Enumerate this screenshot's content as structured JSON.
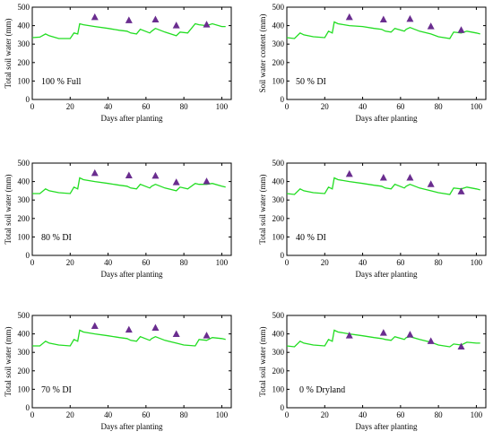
{
  "colors": {
    "simulated": "#22dd22",
    "measured": "#6a2d8f",
    "axis": "#000000"
  },
  "chart_data": [
    {
      "type": "line",
      "label": "100 % Full",
      "xlabel": "Days after planting",
      "ylabel": "Total soil water (mm)",
      "xlim": [
        0,
        105
      ],
      "ylim": [
        0,
        500
      ],
      "xticks": [
        0,
        20,
        40,
        60,
        80,
        100
      ],
      "yticks": [
        0,
        100,
        200,
        300,
        400,
        500
      ],
      "grid": false,
      "series": [
        {
          "style": "line",
          "x": [
            0,
            4,
            7,
            9,
            14,
            20,
            22,
            24,
            25,
            27,
            33,
            40,
            46,
            50,
            52,
            55,
            57,
            62,
            63,
            65,
            70,
            76,
            78,
            82,
            86,
            88,
            92,
            95,
            100,
            102
          ],
          "y": [
            335,
            338,
            355,
            345,
            330,
            330,
            360,
            355,
            410,
            405,
            395,
            385,
            375,
            370,
            360,
            355,
            380,
            360,
            370,
            385,
            365,
            345,
            365,
            360,
            410,
            405,
            400,
            410,
            395,
            395
          ]
        },
        {
          "style": "triangle",
          "x": [
            33,
            51,
            65,
            76,
            92
          ],
          "y": [
            445,
            428,
            432,
            400,
            405
          ]
        }
      ]
    },
    {
      "type": "line",
      "label": "50 % DI",
      "xlabel": "Days after planting",
      "ylabel": "Soil water content (mm)",
      "xlim": [
        0,
        105
      ],
      "ylim": [
        0,
        500
      ],
      "xticks": [
        0,
        20,
        40,
        60,
        80,
        100
      ],
      "yticks": [
        0,
        100,
        200,
        300,
        400,
        500
      ],
      "grid": false,
      "series": [
        {
          "style": "line",
          "x": [
            0,
            4,
            7,
            9,
            14,
            20,
            22,
            24,
            25,
            27,
            33,
            40,
            46,
            50,
            52,
            55,
            57,
            62,
            63,
            65,
            70,
            76,
            80,
            86,
            88,
            92,
            95,
            100,
            102
          ],
          "y": [
            335,
            330,
            360,
            350,
            340,
            335,
            370,
            360,
            420,
            410,
            400,
            395,
            385,
            380,
            370,
            365,
            385,
            370,
            380,
            390,
            370,
            355,
            340,
            330,
            365,
            360,
            370,
            360,
            355
          ]
        },
        {
          "style": "triangle",
          "x": [
            33,
            51,
            65,
            76,
            92
          ],
          "y": [
            445,
            432,
            435,
            395,
            375
          ]
        }
      ]
    },
    {
      "type": "line",
      "label": "80 % DI",
      "xlabel": "Days after planting",
      "ylabel": "Total soil water (mm)",
      "xlim": [
        0,
        105
      ],
      "ylim": [
        0,
        500
      ],
      "xticks": [
        0,
        20,
        40,
        60,
        80,
        100
      ],
      "yticks": [
        0,
        100,
        200,
        300,
        400,
        500
      ],
      "grid": false,
      "series": [
        {
          "style": "line",
          "x": [
            0,
            4,
            7,
            9,
            14,
            20,
            22,
            24,
            25,
            27,
            33,
            40,
            46,
            50,
            52,
            55,
            57,
            62,
            63,
            65,
            70,
            76,
            78,
            82,
            86,
            88,
            92,
            95,
            100,
            102
          ],
          "y": [
            335,
            335,
            360,
            350,
            340,
            335,
            370,
            360,
            420,
            410,
            400,
            390,
            380,
            375,
            365,
            360,
            385,
            365,
            375,
            385,
            365,
            350,
            370,
            360,
            390,
            385,
            385,
            390,
            375,
            370
          ]
        },
        {
          "style": "triangle",
          "x": [
            33,
            51,
            65,
            76,
            92
          ],
          "y": [
            445,
            432,
            430,
            395,
            400
          ]
        }
      ]
    },
    {
      "type": "line",
      "label": "40 % DI",
      "xlabel": "Days after planting",
      "ylabel": "Total soil water (mm)",
      "xlim": [
        0,
        105
      ],
      "ylim": [
        0,
        500
      ],
      "xticks": [
        0,
        20,
        40,
        60,
        80,
        100
      ],
      "yticks": [
        0,
        100,
        200,
        300,
        400,
        500
      ],
      "grid": false,
      "series": [
        {
          "style": "line",
          "x": [
            0,
            4,
            7,
            9,
            14,
            20,
            22,
            24,
            25,
            27,
            33,
            40,
            46,
            50,
            52,
            55,
            57,
            62,
            63,
            65,
            70,
            76,
            80,
            86,
            88,
            92,
            95,
            100,
            102
          ],
          "y": [
            335,
            330,
            360,
            350,
            340,
            335,
            370,
            360,
            420,
            410,
            400,
            390,
            380,
            375,
            365,
            360,
            385,
            365,
            375,
            385,
            365,
            350,
            340,
            330,
            365,
            360,
            370,
            360,
            355
          ]
        },
        {
          "style": "triangle",
          "x": [
            33,
            51,
            65,
            76,
            92
          ],
          "y": [
            440,
            420,
            420,
            385,
            345
          ]
        }
      ]
    },
    {
      "type": "line",
      "label": "70 % DI",
      "xlabel": "Days after planting",
      "ylabel": "Total soil water (mm)",
      "xlim": [
        0,
        105
      ],
      "ylim": [
        0,
        500
      ],
      "xticks": [
        0,
        20,
        40,
        60,
        80,
        100
      ],
      "yticks": [
        0,
        100,
        200,
        300,
        400,
        500
      ],
      "grid": false,
      "series": [
        {
          "style": "line",
          "x": [
            0,
            4,
            7,
            9,
            14,
            20,
            22,
            24,
            25,
            27,
            33,
            40,
            46,
            50,
            52,
            55,
            57,
            62,
            63,
            65,
            70,
            76,
            80,
            86,
            88,
            92,
            95,
            100,
            102
          ],
          "y": [
            335,
            335,
            360,
            350,
            340,
            335,
            370,
            360,
            420,
            410,
            400,
            390,
            380,
            375,
            365,
            360,
            385,
            365,
            375,
            385,
            365,
            350,
            340,
            335,
            370,
            365,
            380,
            375,
            370
          ]
        },
        {
          "style": "triangle",
          "x": [
            33,
            51,
            65,
            76,
            92
          ],
          "y": [
            442,
            422,
            432,
            398,
            390
          ]
        }
      ]
    },
    {
      "type": "line",
      "label": "0 %  Dryland",
      "xlabel": "Days after planting",
      "ylabel": "Total soil water (mm)",
      "xlim": [
        0,
        105
      ],
      "ylim": [
        0,
        500
      ],
      "xticks": [
        0,
        20,
        40,
        60,
        80,
        100
      ],
      "yticks": [
        0,
        100,
        200,
        300,
        400,
        500
      ],
      "grid": false,
      "series": [
        {
          "style": "line",
          "x": [
            0,
            4,
            7,
            9,
            14,
            20,
            22,
            24,
            25,
            27,
            33,
            40,
            46,
            50,
            52,
            55,
            57,
            62,
            63,
            65,
            70,
            76,
            80,
            86,
            88,
            92,
            95,
            100,
            102
          ],
          "y": [
            335,
            330,
            360,
            350,
            340,
            335,
            370,
            360,
            420,
            410,
            400,
            390,
            380,
            375,
            370,
            365,
            385,
            370,
            380,
            385,
            370,
            355,
            340,
            330,
            345,
            340,
            355,
            350,
            350
          ]
        },
        {
          "style": "triangle",
          "x": [
            33,
            51,
            65,
            76,
            92
          ],
          "y": [
            390,
            405,
            395,
            360,
            330
          ]
        }
      ]
    }
  ]
}
